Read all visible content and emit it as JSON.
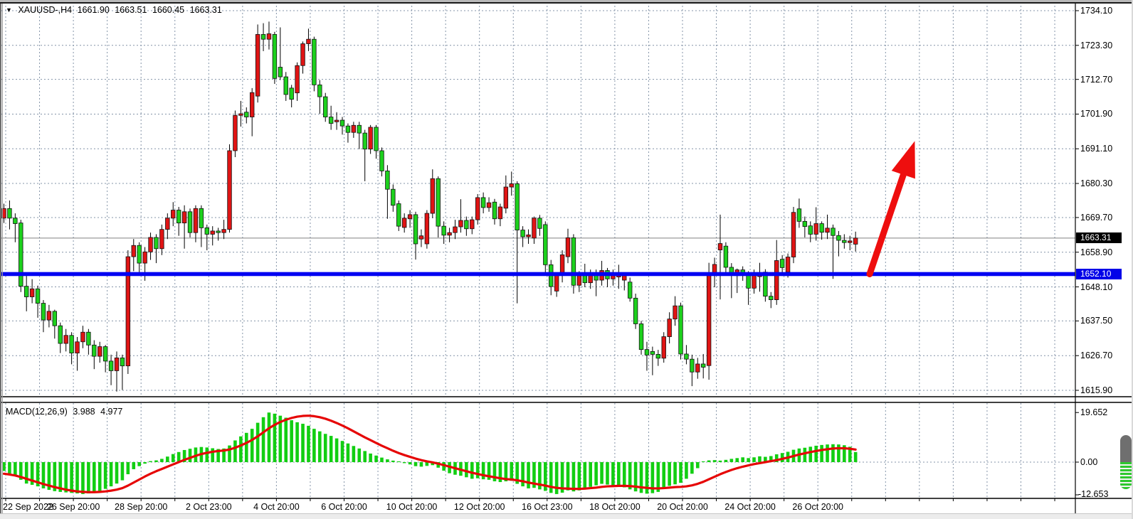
{
  "header": {
    "dropdown_icon": "▼",
    "symbol_timeframe": "XAUUSD-,H4",
    "open": "1661.90",
    "high": "1663.51",
    "low": "1660.45",
    "close": "1663.31"
  },
  "macd_panel": {
    "label": "MACD(12,26,9)",
    "macd_value": "3.988",
    "signal_value": "4.977"
  },
  "price_axis": {
    "labels": [
      "1734.10",
      "1723.30",
      "1712.70",
      "1701.90",
      "1691.10",
      "1680.30",
      "1669.70",
      "1658.90",
      "1648.10",
      "1637.50",
      "1626.70",
      "1615.90"
    ],
    "current_price_badge": "1663.31",
    "level_badge": "1652.10"
  },
  "macd_axis": {
    "max_label": "19.652",
    "zero_label": "0.00",
    "min_label": "-12.653"
  },
  "time_axis": {
    "labels": [
      "22 Sep 2022",
      "26 Sep 20:00",
      "28 Sep 20:00",
      "2 Oct 23:00",
      "4 Oct 20:00",
      "6 Oct 20:00",
      "10 Oct 20:00",
      "12 Oct 20:00",
      "16 Oct 23:00",
      "18 Oct 20:00",
      "20 Oct 20:00",
      "24 Oct 20:00",
      "26 Oct 20:00"
    ]
  },
  "colors": {
    "bull": "#e01414",
    "bear": "#1dd11d",
    "candle_outline": "#111111",
    "macd_hist": "#12ce12",
    "macd_signal": "#e60505",
    "level_line": "#0202f2",
    "grid": "#8494a8",
    "current_line": "#808080",
    "badge_current_bg": "#000000",
    "badge_level_bg": "#0202e8",
    "arrow": "#ee0e0e"
  },
  "chart_data": {
    "type": "candlestick",
    "symbol": "XAUUSD",
    "timeframe": "H4",
    "title": "XAUUSD-,H4 1661.90 1663.51 1660.45 1663.31",
    "price_ticks": [
      1734.1,
      1723.3,
      1712.7,
      1701.9,
      1691.1,
      1680.3,
      1669.7,
      1658.9,
      1648.1,
      1637.5,
      1626.7,
      1615.9
    ],
    "current_price": 1663.31,
    "level_line_price": 1652.1,
    "time_labels_every_n_gridlines": 2,
    "candles_per_gridline": 6,
    "candles": [
      [
        1669.5,
        1674.0,
        1668.0,
        1672.5
      ],
      [
        1672.5,
        1675.0,
        1666.0,
        1669.5
      ],
      [
        1669.5,
        1671.0,
        1662.0,
        1667.8
      ],
      [
        1668.0,
        1669.0,
        1646.5,
        1648.3
      ],
      [
        1648.3,
        1652.0,
        1640.5,
        1645.0
      ],
      [
        1645.0,
        1650.5,
        1643.0,
        1647.5
      ],
      [
        1647.5,
        1648.5,
        1638.5,
        1643.0
      ],
      [
        1643.0,
        1644.0,
        1634.0,
        1637.8
      ],
      [
        1637.8,
        1642.5,
        1635.5,
        1640.5
      ],
      [
        1640.5,
        1641.0,
        1632.0,
        1636.0
      ],
      [
        1636.0,
        1637.0,
        1627.5,
        1630.5
      ],
      [
        1630.5,
        1635.0,
        1628.0,
        1633.0
      ],
      [
        1633.0,
        1634.0,
        1624.0,
        1627.5
      ],
      [
        1627.5,
        1632.5,
        1622.0,
        1631.0
      ],
      [
        1631.0,
        1636.0,
        1629.0,
        1634.0
      ],
      [
        1634.0,
        1635.0,
        1627.0,
        1630.0
      ],
      [
        1630.0,
        1631.5,
        1622.5,
        1626.5
      ],
      [
        1626.5,
        1631.0,
        1624.5,
        1629.5
      ],
      [
        1629.5,
        1630.0,
        1621.5,
        1625.0
      ],
      [
        1625.0,
        1627.0,
        1617.5,
        1622.0
      ],
      [
        1622.0,
        1628.0,
        1615.5,
        1626.0
      ],
      [
        1626.0,
        1627.0,
        1616.0,
        1623.5
      ],
      [
        1623.5,
        1659.5,
        1621.0,
        1657.5
      ],
      [
        1657.5,
        1663.0,
        1653.0,
        1661.0
      ],
      [
        1661.0,
        1662.0,
        1652.5,
        1655.5
      ],
      [
        1655.5,
        1660.5,
        1650.0,
        1659.0
      ],
      [
        1659.0,
        1665.0,
        1656.5,
        1663.5
      ],
      [
        1663.5,
        1664.5,
        1655.5,
        1660.0
      ],
      [
        1660.0,
        1667.5,
        1658.0,
        1666.0
      ],
      [
        1666.0,
        1671.0,
        1663.0,
        1669.5
      ],
      [
        1669.5,
        1674.5,
        1667.0,
        1672.0
      ],
      [
        1672.0,
        1673.0,
        1664.0,
        1668.0
      ],
      [
        1668.0,
        1673.5,
        1660.0,
        1671.5
      ],
      [
        1671.5,
        1672.5,
        1663.5,
        1665.0
      ],
      [
        1665.0,
        1673.5,
        1662.0,
        1672.5
      ],
      [
        1672.5,
        1673.5,
        1660.5,
        1666.5
      ],
      [
        1666.5,
        1667.5,
        1659.5,
        1664.5
      ],
      [
        1664.5,
        1667.0,
        1661.0,
        1665.5
      ],
      [
        1665.5,
        1666.5,
        1662.5,
        1665.0
      ],
      [
        1665.0,
        1669.0,
        1663.0,
        1666.0
      ],
      [
        1666.0,
        1692.5,
        1665.0,
        1690.5
      ],
      [
        1690.5,
        1703.0,
        1688.5,
        1701.5
      ],
      [
        1701.5,
        1706.0,
        1698.0,
        1702.0
      ],
      [
        1702.5,
        1704.0,
        1699.0,
        1701.0
      ],
      [
        1701.0,
        1710.0,
        1695.0,
        1708.6
      ],
      [
        1707.5,
        1729.8,
        1705.5,
        1726.7
      ],
      [
        1726.7,
        1730.2,
        1721.5,
        1725.2
      ],
      [
        1725.2,
        1730.7,
        1722.0,
        1726.9
      ],
      [
        1726.7,
        1727.5,
        1711.3,
        1713.0
      ],
      [
        1716.5,
        1728.9,
        1712.5,
        1713.5
      ],
      [
        1713.5,
        1715.0,
        1706.0,
        1708.0
      ],
      [
        1710.0,
        1711.0,
        1704.0,
        1706.5
      ],
      [
        1708.5,
        1718.0,
        1706.0,
        1717.0
      ],
      [
        1717.0,
        1724.5,
        1714.5,
        1723.8
      ],
      [
        1723.8,
        1728.5,
        1721.5,
        1725.2
      ],
      [
        1725.2,
        1726.0,
        1709.0,
        1711.0
      ],
      [
        1711.0,
        1712.5,
        1702.0,
        1707.3
      ],
      [
        1707.3,
        1708.5,
        1699.5,
        1701.0
      ],
      [
        1701.0,
        1704.5,
        1697.0,
        1699.0
      ],
      [
        1699.5,
        1702.5,
        1697.0,
        1700.0
      ],
      [
        1700.0,
        1701.0,
        1695.5,
        1698.2
      ],
      [
        1698.2,
        1699.0,
        1693.0,
        1696.2
      ],
      [
        1696.2,
        1699.5,
        1694.5,
        1698.4
      ],
      [
        1698.4,
        1699.5,
        1691.0,
        1696.0
      ],
      [
        1696.0,
        1697.0,
        1681.0,
        1691.0
      ],
      [
        1691.0,
        1698.5,
        1689.5,
        1697.8
      ],
      [
        1697.8,
        1698.5,
        1688.0,
        1690.5
      ],
      [
        1690.5,
        1691.5,
        1682.5,
        1684.2
      ],
      [
        1684.2,
        1686.0,
        1669.3,
        1678.5
      ],
      [
        1678.5,
        1680.0,
        1671.5,
        1673.5
      ],
      [
        1674.0,
        1675.0,
        1665.5,
        1667.0
      ],
      [
        1666.6,
        1671.0,
        1665.0,
        1669.5
      ],
      [
        1669.3,
        1672.0,
        1666.5,
        1670.6
      ],
      [
        1670.6,
        1671.5,
        1656.6,
        1661.5
      ],
      [
        1663.0,
        1666.0,
        1660.5,
        1664.0
      ],
      [
        1661.5,
        1672.0,
        1660.0,
        1671.0
      ],
      [
        1671.0,
        1684.7,
        1669.5,
        1681.8
      ],
      [
        1681.8,
        1682.5,
        1663.5,
        1667.0
      ],
      [
        1667.0,
        1668.5,
        1661.5,
        1664.2
      ],
      [
        1664.2,
        1666.5,
        1662.0,
        1665.0
      ],
      [
        1665.0,
        1669.0,
        1663.0,
        1666.8
      ],
      [
        1666.8,
        1675.4,
        1665.0,
        1668.8
      ],
      [
        1668.8,
        1670.0,
        1664.0,
        1666.2
      ],
      [
        1666.2,
        1670.0,
        1664.5,
        1669.0
      ],
      [
        1669.0,
        1677.0,
        1667.5,
        1675.9
      ],
      [
        1675.9,
        1677.5,
        1671.0,
        1672.8
      ],
      [
        1672.8,
        1676.0,
        1671.5,
        1674.3
      ],
      [
        1674.5,
        1675.5,
        1667.5,
        1669.3
      ],
      [
        1669.3,
        1674.0,
        1667.0,
        1673.0
      ],
      [
        1672.6,
        1682.8,
        1671.0,
        1679.2
      ],
      [
        1679.2,
        1684.0,
        1676.5,
        1680.2
      ],
      [
        1680.2,
        1681.0,
        1643.0,
        1665.8
      ],
      [
        1665.8,
        1667.0,
        1660.5,
        1663.7
      ],
      [
        1663.7,
        1666.0,
        1661.5,
        1664.3
      ],
      [
        1663.3,
        1670.0,
        1661.5,
        1669.5
      ],
      [
        1669.5,
        1670.5,
        1664.0,
        1666.3
      ],
      [
        1667.5,
        1668.5,
        1652.0,
        1655.0
      ],
      [
        1655.0,
        1656.5,
        1645.5,
        1648.2
      ],
      [
        1646.8,
        1652.5,
        1645.0,
        1651.7
      ],
      [
        1651.7,
        1659.5,
        1649.5,
        1658.1
      ],
      [
        1657.5,
        1666.2,
        1655.5,
        1663.4
      ],
      [
        1663.4,
        1664.5,
        1646.0,
        1648.6
      ],
      [
        1648.6,
        1653.0,
        1646.5,
        1651.6
      ],
      [
        1651.6,
        1655.3,
        1648.0,
        1649.4
      ],
      [
        1649.4,
        1653.5,
        1647.5,
        1652.4
      ],
      [
        1652.4,
        1653.5,
        1645.2,
        1650.2
      ],
      [
        1650.2,
        1656.2,
        1648.5,
        1653.2
      ],
      [
        1653.2,
        1654.0,
        1648.0,
        1650.6
      ],
      [
        1650.6,
        1653.5,
        1648.5,
        1652.4
      ],
      [
        1651.2,
        1655.0,
        1647.5,
        1651.8
      ],
      [
        1650.2,
        1652.5,
        1647.0,
        1651.6
      ],
      [
        1649.6,
        1651.0,
        1643.5,
        1644.6
      ],
      [
        1644.6,
        1646.0,
        1635.0,
        1636.6
      ],
      [
        1636.6,
        1637.5,
        1627.0,
        1628.6
      ],
      [
        1628.6,
        1631.0,
        1622.0,
        1626.9
      ],
      [
        1628.0,
        1629.5,
        1620.6,
        1627.1
      ],
      [
        1627.1,
        1628.5,
        1623.5,
        1625.9
      ],
      [
        1625.9,
        1634.0,
        1624.5,
        1632.6
      ],
      [
        1632.6,
        1640.2,
        1630.5,
        1638.1
      ],
      [
        1638.1,
        1645.2,
        1636.0,
        1642.2
      ],
      [
        1642.2,
        1643.2,
        1625.5,
        1627.2
      ],
      [
        1627.2,
        1630.0,
        1624.0,
        1625.6
      ],
      [
        1625.6,
        1627.0,
        1617.2,
        1621.6
      ],
      [
        1621.6,
        1626.0,
        1619.5,
        1624.1
      ],
      [
        1624.1,
        1627.2,
        1619.6,
        1623.1
      ],
      [
        1623.6,
        1655.6,
        1619.2,
        1652.1
      ],
      [
        1652.1,
        1657.2,
        1648.0,
        1655.1
      ],
      [
        1659.6,
        1670.6,
        1644.2,
        1661.6
      ],
      [
        1660.8,
        1662.0,
        1652.5,
        1654.2
      ],
      [
        1654.2,
        1655.5,
        1644.6,
        1652.2
      ],
      [
        1651.6,
        1653.8,
        1646.2,
        1653.4
      ],
      [
        1653.4,
        1654.5,
        1650.0,
        1652.0
      ],
      [
        1652.0,
        1653.0,
        1642.5,
        1647.7
      ],
      [
        1647.7,
        1653.5,
        1646.0,
        1651.9
      ],
      [
        1651.3,
        1655.6,
        1646.6,
        1652.1
      ],
      [
        1652.7,
        1653.6,
        1643.5,
        1645.2
      ],
      [
        1645.2,
        1646.5,
        1641.5,
        1644.1
      ],
      [
        1644.1,
        1662.7,
        1642.5,
        1656.3
      ],
      [
        1656.7,
        1658.0,
        1651.5,
        1654.1
      ],
      [
        1652.7,
        1658.5,
        1651.0,
        1657.4
      ],
      [
        1657.4,
        1673.0,
        1655.5,
        1671.3
      ],
      [
        1672.4,
        1675.6,
        1666.5,
        1668.5
      ],
      [
        1668.5,
        1670.0,
        1663.5,
        1666.9
      ],
      [
        1667.1,
        1668.5,
        1662.0,
        1664.5
      ],
      [
        1664.5,
        1672.9,
        1662.5,
        1667.8
      ],
      [
        1667.8,
        1668.5,
        1662.8,
        1665.1
      ],
      [
        1665.1,
        1670.6,
        1663.0,
        1666.4
      ],
      [
        1666.4,
        1667.5,
        1650.6,
        1664.1
      ],
      [
        1664.1,
        1665.5,
        1657.6,
        1662.6
      ],
      [
        1662.6,
        1664.5,
        1660.0,
        1661.9
      ],
      [
        1661.9,
        1664.0,
        1659.5,
        1662.4
      ],
      [
        1661.4,
        1665.3,
        1659.1,
        1663.3
      ]
    ],
    "macd": {
      "params": "12,26,9",
      "last_macd": 3.988,
      "last_signal": 4.977,
      "scale_max": 19.652,
      "scale_min": -12.653,
      "histogram": [
        -3.5,
        -4.5,
        -5.5,
        -7.0,
        -8.5,
        -9.0,
        -9.6,
        -10.4,
        -11.0,
        -11.5,
        -11.8,
        -12.0,
        -12.2,
        -12.4,
        -12.65,
        -12.4,
        -12.0,
        -11.4,
        -10.6,
        -9.6,
        -8.5,
        -7.2,
        -4.8,
        -2.8,
        -1.6,
        -0.6,
        0.4,
        0.7,
        1.3,
        2.2,
        3.2,
        4.0,
        4.8,
        5.3,
        5.8,
        6.0,
        5.8,
        5.5,
        5.2,
        5.4,
        6.6,
        8.6,
        10.2,
        11.6,
        13.2,
        15.6,
        17.8,
        19.65,
        19.2,
        18.4,
        17.6,
        16.6,
        15.8,
        15.2,
        14.4,
        13.2,
        12.2,
        11.2,
        10.4,
        9.4,
        8.4,
        7.4,
        6.4,
        5.4,
        4.4,
        3.4,
        2.6,
        1.8,
        1.1,
        0.6,
        0.3,
        -0.4,
        -0.9,
        -1.6,
        -1.8,
        -1.5,
        -1.2,
        -2.2,
        -3.4,
        -4.4,
        -5.0,
        -5.4,
        -6.0,
        -6.6,
        -6.4,
        -6.8,
        -7.0,
        -7.6,
        -7.9,
        -7.6,
        -7.4,
        -8.6,
        -9.6,
        -10.4,
        -10.2,
        -10.8,
        -11.4,
        -12.2,
        -12.65,
        -12.1,
        -11.2,
        -11.6,
        -11.2,
        -10.6,
        -9.8,
        -9.2,
        -8.6,
        -8.9,
        -9.2,
        -9.6,
        -10.0,
        -10.8,
        -11.6,
        -12.2,
        -12.5,
        -12.3,
        -11.8,
        -10.2,
        -9.4,
        -8.8,
        -8.2,
        -6.6,
        -4.6,
        -2.4,
        0.3,
        0.7,
        0.8,
        0.6,
        0.9,
        1.3,
        1.6,
        1.9,
        1.6,
        1.9,
        2.3,
        2.1,
        2.4,
        3.1,
        3.6,
        4.1,
        4.9,
        5.4,
        5.7,
        6.1,
        6.5,
        6.8,
        7.0,
        7.1,
        7.0,
        6.7,
        6.1,
        3.988
      ],
      "signal": [
        -4.6,
        -4.9,
        -5.3,
        -5.9,
        -6.6,
        -7.3,
        -8.0,
        -8.7,
        -9.3,
        -9.9,
        -10.4,
        -10.9,
        -11.3,
        -11.6,
        -11.8,
        -11.9,
        -11.9,
        -11.8,
        -11.6,
        -11.3,
        -10.9,
        -10.3,
        -9.3,
        -8.1,
        -6.9,
        -5.7,
        -4.6,
        -3.6,
        -2.7,
        -1.8,
        -0.9,
        0.0,
        0.9,
        1.7,
        2.5,
        3.2,
        3.7,
        4.1,
        4.4,
        4.6,
        5.0,
        5.7,
        6.6,
        7.6,
        8.8,
        10.2,
        11.8,
        13.4,
        14.8,
        15.9,
        16.8,
        17.5,
        18.0,
        18.3,
        18.4,
        18.2,
        17.8,
        17.2,
        16.4,
        15.5,
        14.5,
        13.4,
        12.2,
        11.0,
        9.8,
        8.7,
        7.6,
        6.5,
        5.5,
        4.5,
        3.6,
        2.8,
        2.1,
        1.4,
        0.8,
        0.3,
        -0.1,
        -0.6,
        -1.2,
        -1.8,
        -2.4,
        -3.0,
        -3.6,
        -4.2,
        -4.7,
        -5.2,
        -5.6,
        -6.0,
        -6.4,
        -6.7,
        -6.9,
        -7.2,
        -7.6,
        -8.1,
        -8.5,
        -8.9,
        -9.3,
        -9.8,
        -10.2,
        -10.4,
        -10.5,
        -10.6,
        -10.6,
        -10.5,
        -10.3,
        -10.1,
        -9.8,
        -9.6,
        -9.5,
        -9.4,
        -9.4,
        -9.5,
        -9.7,
        -10.0,
        -10.2,
        -10.4,
        -10.4,
        -10.3,
        -10.1,
        -9.9,
        -9.8,
        -9.6,
        -9.2,
        -8.6,
        -7.8,
        -6.8,
        -5.8,
        -4.8,
        -3.9,
        -3.1,
        -2.4,
        -1.8,
        -1.3,
        -0.8,
        -0.4,
        0.0,
        0.4,
        0.8,
        1.3,
        1.8,
        2.4,
        3.0,
        3.5,
        4.0,
        4.4,
        4.8,
        5.1,
        5.4,
        5.5,
        5.5,
        5.3,
        4.977
      ]
    },
    "trend_arrow": {
      "direction": "up",
      "from_x_index": 153.5,
      "from_price": 1652.1,
      "to_x_index": 161.5,
      "to_price": 1693.5
    }
  }
}
